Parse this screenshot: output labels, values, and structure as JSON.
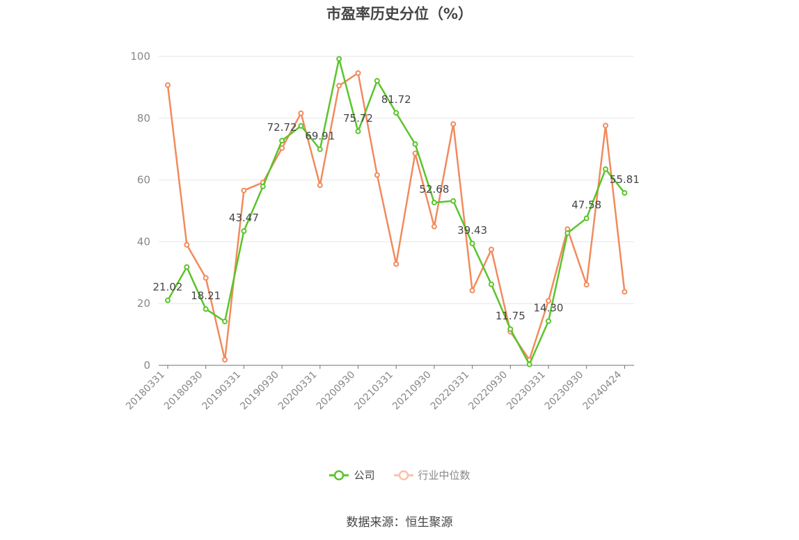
{
  "title": "市盈率历史分位（%）",
  "source": "数据来源：恒生聚源",
  "legend": [
    {
      "name": "公司",
      "color": "#5ac42a"
    },
    {
      "name": "行业中位数",
      "color": "#f28a5c"
    }
  ],
  "chart_data": {
    "type": "line",
    "title": "市盈率历史分位（%）",
    "ylim": [
      0,
      100
    ],
    "y_ticks": [
      0,
      20,
      40,
      60,
      80,
      100
    ],
    "x_tick_labels": [
      "20180331",
      "20180930",
      "20190331",
      "20190930",
      "20200331",
      "20200930",
      "20210331",
      "20210930",
      "20220331",
      "20220930",
      "20230331",
      "20230930",
      "20240424"
    ],
    "x": [
      "20180331",
      "20180630",
      "20180930",
      "20181231",
      "20190331",
      "20190630",
      "20190930",
      "20191231",
      "20200331",
      "20200630",
      "20200930",
      "20201231",
      "20210331",
      "20210630",
      "20210930",
      "20211231",
      "20220331",
      "20220630",
      "20220930",
      "20221231",
      "20230331",
      "20230630",
      "20230930",
      "20231231",
      "20240424"
    ],
    "series": [
      {
        "name": "公司",
        "color": "#5ac42a",
        "values": [
          21.02,
          31.8,
          18.21,
          14.2,
          43.47,
          57.9,
          72.72,
          77.5,
          69.91,
          99.2,
          75.72,
          92.1,
          81.72,
          71.6,
          52.68,
          53.2,
          39.43,
          26.2,
          11.75,
          0.3,
          14.3,
          42.8,
          47.58,
          63.5,
          55.81
        ],
        "labels": {
          "0": "21.02",
          "2": "18.21",
          "4": "43.47",
          "6": "72.72",
          "8": "69.91",
          "10": "75.72",
          "12": "81.72",
          "14": "52.68",
          "16": "39.43",
          "18": "11.75",
          "20": "14.30",
          "22": "47.58",
          "24": "55.81"
        }
      },
      {
        "name": "行业中位数",
        "color": "#f28a5c",
        "values": [
          90.7,
          39.0,
          28.3,
          1.8,
          56.6,
          59.2,
          70.3,
          81.6,
          58.3,
          90.5,
          94.6,
          61.6,
          32.8,
          68.6,
          44.9,
          78.1,
          24.2,
          37.5,
          10.9,
          1.8,
          20.9,
          44.1,
          26.1,
          77.6,
          23.8
        ]
      }
    ]
  }
}
